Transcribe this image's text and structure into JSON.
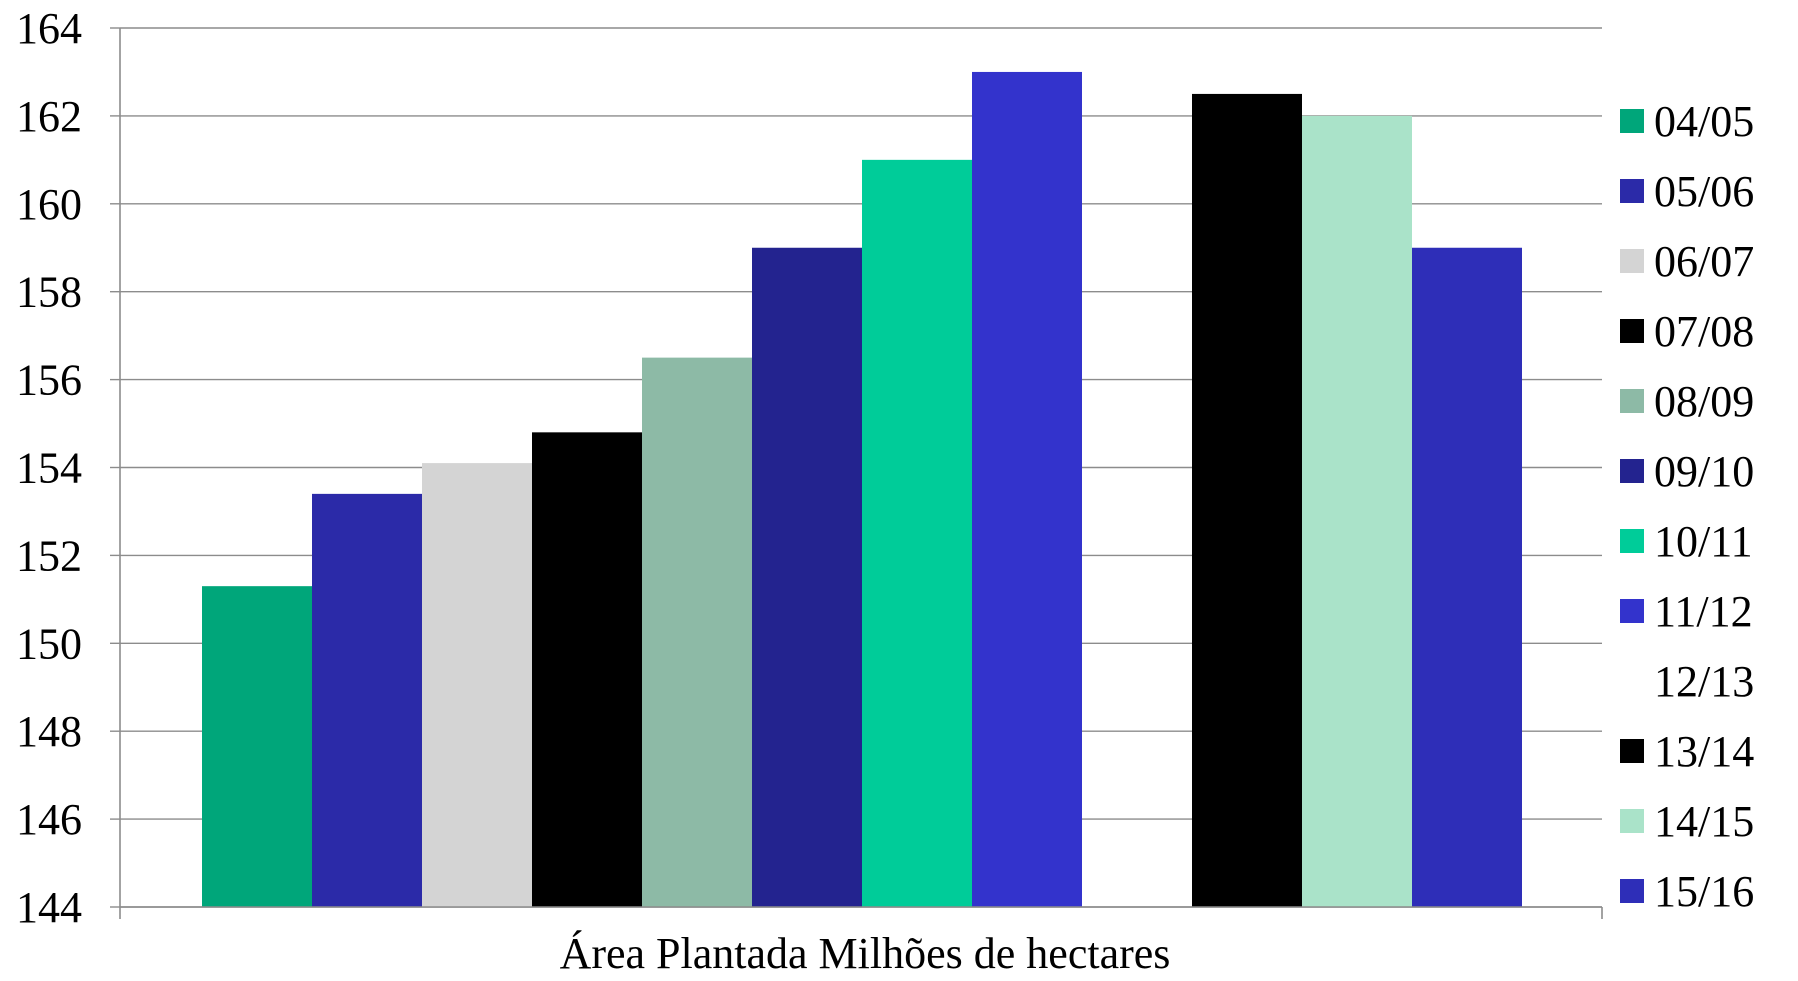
{
  "chart_data": {
    "type": "bar",
    "title": "",
    "xlabel": "Área Plantada Milhões de hectares",
    "ylabel": "",
    "categories": [
      "Área Plantada Milhões de hectares"
    ],
    "ylim": [
      144,
      164
    ],
    "yticks": [
      144,
      146,
      148,
      150,
      152,
      154,
      156,
      158,
      160,
      162,
      164
    ],
    "grid": true,
    "legend_position": "right",
    "series": [
      {
        "name": "04/05",
        "values": [
          151.3
        ],
        "color": "#00a67a"
      },
      {
        "name": "05/06",
        "values": [
          153.4
        ],
        "color": "#2b2aa8"
      },
      {
        "name": "06/07",
        "values": [
          154.1
        ],
        "color": "#d4d4d4"
      },
      {
        "name": "07/08",
        "values": [
          154.8
        ],
        "color": "#000000"
      },
      {
        "name": "08/09",
        "values": [
          156.5
        ],
        "color": "#8dbaa6"
      },
      {
        "name": "09/10",
        "values": [
          159.0
        ],
        "color": "#23238f"
      },
      {
        "name": "10/11",
        "values": [
          161.0
        ],
        "color": "#00cc99"
      },
      {
        "name": "11/12",
        "values": [
          163.0
        ],
        "color": "#3333cc"
      },
      {
        "name": "12/13",
        "values": [
          null
        ],
        "color": "#ffffff"
      },
      {
        "name": "13/14",
        "values": [
          162.5
        ],
        "color": "#000000"
      },
      {
        "name": "14/15",
        "values": [
          162.0
        ],
        "color": "#aae3c9"
      },
      {
        "name": "15/16",
        "values": [
          159.0
        ],
        "color": "#2e2eb8"
      }
    ]
  }
}
